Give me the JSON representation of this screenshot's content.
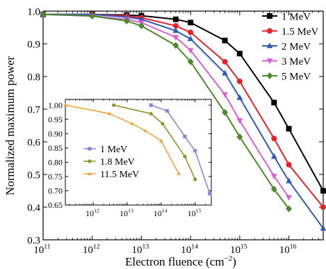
{
  "chart_data": [
    {
      "type": "line",
      "xlabel": "Electron fluence (cm",
      "xlabel_sup": "−2",
      "xlabel_close": ")",
      "ylabel": "Normalized maximum power",
      "x_scale": "log",
      "xlim": [
        100000000000.0,
        5e+16
      ],
      "ylim": [
        0.3,
        1.0
      ],
      "x_ticks": [
        {
          "v": 100000000000.0,
          "base": "10",
          "exp": "11"
        },
        {
          "v": 1000000000000.0,
          "base": "10",
          "exp": "12"
        },
        {
          "v": 10000000000000.0,
          "base": "10",
          "exp": "13"
        },
        {
          "v": 100000000000000.0,
          "base": "10",
          "exp": "14"
        },
        {
          "v": 1000000000000000.0,
          "base": "10",
          "exp": "15"
        },
        {
          "v": 1e+16,
          "base": "10",
          "exp": "16"
        }
      ],
      "y_ticks": [
        {
          "v": 0.3,
          "label": "0.3"
        },
        {
          "v": 0.4,
          "label": "0.4"
        },
        {
          "v": 0.5,
          "label": "0.5"
        },
        {
          "v": 0.6,
          "label": "0.6"
        },
        {
          "v": 0.7,
          "label": "0.7"
        },
        {
          "v": 0.8,
          "label": "0.8"
        },
        {
          "v": 0.9,
          "label": "0.9"
        },
        {
          "v": 1.0,
          "label": "1.0"
        }
      ],
      "legend_position": "top-right",
      "series": [
        {
          "name": "1 MeV",
          "color": "#000000",
          "marker": "square",
          "x": [
            100000000000.0,
            1000000000000.0,
            5000000000000.0,
            10000000000000.0,
            50000000000000.0,
            100000000000000.0,
            500000000000000.0,
            1000000000000000.0,
            5000000000000000.0,
            1e+16,
            5e+16
          ],
          "y": [
            0.99,
            0.99,
            0.988,
            0.986,
            0.975,
            0.965,
            0.91,
            0.87,
            0.72,
            0.64,
            0.45
          ]
        },
        {
          "name": "1.5 MeV",
          "color": "#e8202a",
          "marker": "circle",
          "x": [
            100000000000.0,
            1000000000000.0,
            5000000000000.0,
            10000000000000.0,
            50000000000000.0,
            100000000000000.0,
            500000000000000.0,
            1000000000000000.0,
            5000000000000000.0,
            1e+16,
            5e+16
          ],
          "y": [
            0.99,
            0.99,
            0.985,
            0.98,
            0.955,
            0.935,
            0.845,
            0.785,
            0.61,
            0.53,
            0.4
          ]
        },
        {
          "name": "2 MeV",
          "color": "#2f58b8",
          "marker": "triangle-up",
          "x": [
            100000000000.0,
            1000000000000.0,
            5000000000000.0,
            10000000000000.0,
            50000000000000.0,
            100000000000000.0,
            500000000000000.0,
            1000000000000000.0,
            5000000000000000.0,
            1e+16,
            5e+16
          ],
          "y": [
            0.99,
            0.99,
            0.982,
            0.975,
            0.94,
            0.915,
            0.81,
            0.735,
            0.555,
            0.48,
            0.335
          ]
        },
        {
          "name": "3 MeV",
          "color": "#d95fd3",
          "marker": "triangle-down",
          "x": [
            100000000000.0,
            1000000000000.0,
            5000000000000.0,
            10000000000000.0,
            50000000000000.0,
            100000000000000.0,
            500000000000000.0,
            1000000000000000.0,
            5000000000000000.0,
            1e+16
          ],
          "y": [
            0.99,
            0.985,
            0.975,
            0.965,
            0.92,
            0.88,
            0.745,
            0.665,
            0.495,
            0.43
          ]
        },
        {
          "name": "5 MeV",
          "color": "#4a8a2a",
          "marker": "diamond",
          "x": [
            100000000000.0,
            1000000000000.0,
            5000000000000.0,
            10000000000000.0,
            50000000000000.0,
            100000000000000.0,
            500000000000000.0,
            1000000000000000.0,
            5000000000000000.0,
            1e+16
          ],
          "y": [
            0.99,
            0.985,
            0.97,
            0.955,
            0.895,
            0.845,
            0.69,
            0.615,
            0.455,
            0.395
          ]
        }
      ]
    },
    {
      "type": "line",
      "role": "inset",
      "x_scale": "log",
      "xlim": [
        150000000000.0,
        3000000000000000.0
      ],
      "ylim": [
        0.65,
        1.02
      ],
      "x_ticks": [
        {
          "v": 1000000000000.0,
          "base": "10",
          "exp": "12"
        },
        {
          "v": 10000000000000.0,
          "base": "10",
          "exp": "13"
        },
        {
          "v": 100000000000000.0,
          "base": "10",
          "exp": "14"
        },
        {
          "v": 1000000000000000.0,
          "base": "10",
          "exp": "15"
        }
      ],
      "y_ticks": [
        {
          "v": 0.65,
          "label": "0.65"
        },
        {
          "v": 0.7,
          "label": "0.70"
        },
        {
          "v": 0.75,
          "label": "0.75"
        },
        {
          "v": 0.8,
          "label": "0.80"
        },
        {
          "v": 0.85,
          "label": "0.85"
        },
        {
          "v": 0.9,
          "label": "0.90"
        },
        {
          "v": 0.95,
          "label": "0.95"
        },
        {
          "v": 1.0,
          "label": "1.00"
        }
      ],
      "legend_position": "center-left",
      "series": [
        {
          "name": "1 MeV",
          "color": "#8a86d8",
          "marker": "square",
          "x": [
            50000000000000.0,
            150000000000000.0,
            500000000000000.0,
            1000000000000000.0,
            2700000000000000.0
          ],
          "y": [
            1.0,
            0.98,
            0.89,
            0.84,
            0.69
          ]
        },
        {
          "name": "1.8 MeV",
          "color": "#8c9628",
          "marker": "circle",
          "x": [
            4000000000000.0,
            50000000000000.0,
            110000000000000.0,
            500000000000000.0,
            1000000000000000.0
          ],
          "y": [
            1.0,
            0.97,
            0.935,
            0.82,
            0.74
          ]
        },
        {
          "name": "11.5 MeV",
          "color": "#f4a23a",
          "marker": "triangle-up",
          "x": [
            150000000000.0,
            3000000000000.0,
            14000000000000.0,
            34000000000000.0,
            100000000000000.0,
            330000000000000.0
          ],
          "y": [
            1.0,
            0.97,
            0.935,
            0.91,
            0.875,
            0.76
          ]
        }
      ]
    }
  ]
}
